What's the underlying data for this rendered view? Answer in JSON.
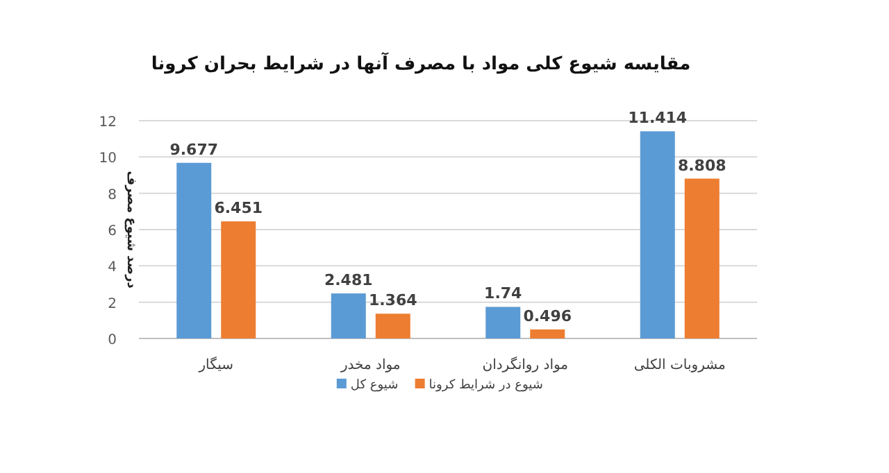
{
  "chart_data": {
    "type": "bar",
    "title": "مقایسه شیوع کلی مواد با مصرف آنها در شرایط بحران کرونا",
    "ylabel": "درصد شیوع مصرف",
    "categories": [
      "سیگار",
      "مواد مخدر",
      "مواد روانگردان",
      "مشروبات الکلی"
    ],
    "series": [
      {
        "name": "شیوع کل",
        "color": "#5b9bd5",
        "values": [
          9.677,
          2.481,
          1.74,
          11.414
        ]
      },
      {
        "name": "شیوع در شرایط کرونا",
        "color": "#ed7d31",
        "values": [
          6.451,
          1.364,
          0.496,
          8.808
        ]
      }
    ],
    "ylim": [
      0,
      12
    ],
    "yticks": [
      0,
      2,
      4,
      6,
      8,
      10,
      12
    ],
    "grid": "y",
    "legend": "bottom",
    "data_labels": true
  }
}
